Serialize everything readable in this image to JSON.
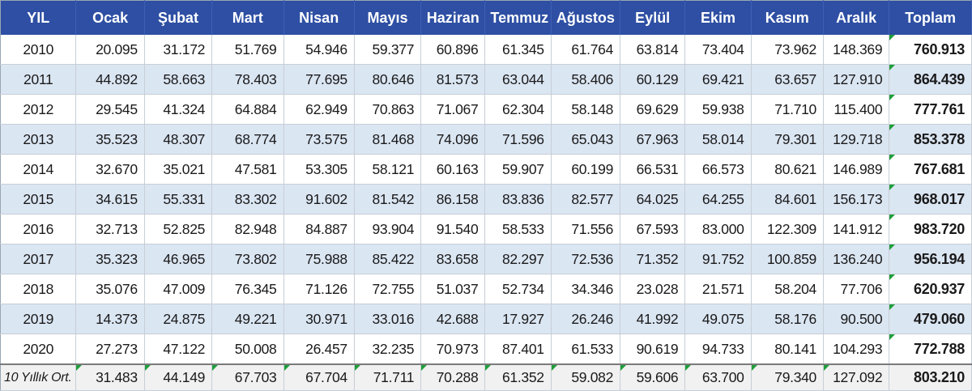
{
  "header": {
    "year": "YIL",
    "months": [
      "Ocak",
      "Şubat",
      "Mart",
      "Nisan",
      "Mayıs",
      "Haziran",
      "Temmuz",
      "Ağustos",
      "Eylül",
      "Ekim",
      "Kasım",
      "Aralık"
    ],
    "total": "Toplam"
  },
  "rows": [
    {
      "year": "2010",
      "values": [
        "20.095",
        "31.172",
        "51.769",
        "54.946",
        "59.377",
        "60.896",
        "61.345",
        "61.764",
        "63.814",
        "73.404",
        "73.962",
        "148.369"
      ],
      "total": "760.913"
    },
    {
      "year": "2011",
      "values": [
        "44.892",
        "58.663",
        "78.403",
        "77.695",
        "80.646",
        "81.573",
        "63.044",
        "58.406",
        "60.129",
        "69.421",
        "63.657",
        "127.910"
      ],
      "total": "864.439"
    },
    {
      "year": "2012",
      "values": [
        "29.545",
        "41.324",
        "64.884",
        "62.949",
        "70.863",
        "71.067",
        "62.304",
        "58.148",
        "69.629",
        "59.938",
        "71.710",
        "115.400"
      ],
      "total": "777.761"
    },
    {
      "year": "2013",
      "values": [
        "35.523",
        "48.307",
        "68.774",
        "73.575",
        "81.468",
        "74.096",
        "71.596",
        "65.043",
        "67.963",
        "58.014",
        "79.301",
        "129.718"
      ],
      "total": "853.378"
    },
    {
      "year": "2014",
      "values": [
        "32.670",
        "35.021",
        "47.581",
        "53.305",
        "58.121",
        "60.163",
        "59.907",
        "60.199",
        "66.531",
        "66.573",
        "80.621",
        "146.989"
      ],
      "total": "767.681"
    },
    {
      "year": "2015",
      "values": [
        "34.615",
        "55.331",
        "83.302",
        "91.602",
        "81.542",
        "86.158",
        "83.836",
        "82.577",
        "64.025",
        "64.255",
        "84.601",
        "156.173"
      ],
      "total": "968.017"
    },
    {
      "year": "2016",
      "values": [
        "32.713",
        "52.825",
        "82.948",
        "84.887",
        "93.904",
        "91.540",
        "58.533",
        "71.556",
        "67.593",
        "83.000",
        "122.309",
        "141.912"
      ],
      "total": "983.720"
    },
    {
      "year": "2017",
      "values": [
        "35.323",
        "46.965",
        "73.802",
        "75.988",
        "85.422",
        "83.658",
        "82.297",
        "72.536",
        "71.352",
        "91.752",
        "100.859",
        "136.240"
      ],
      "total": "956.194"
    },
    {
      "year": "2018",
      "values": [
        "35.076",
        "47.009",
        "76.345",
        "71.126",
        "72.755",
        "51.037",
        "52.734",
        "34.346",
        "23.028",
        "21.571",
        "58.204",
        "77.706"
      ],
      "total": "620.937"
    },
    {
      "year": "2019",
      "values": [
        "14.373",
        "24.875",
        "49.221",
        "30.971",
        "33.016",
        "42.688",
        "17.927",
        "26.246",
        "41.992",
        "49.075",
        "58.176",
        "90.500"
      ],
      "total": "479.060"
    },
    {
      "year": "2020",
      "values": [
        "27.273",
        "47.122",
        "50.008",
        "26.457",
        "32.235",
        "70.973",
        "87.401",
        "61.533",
        "90.619",
        "94.733",
        "80.141",
        "104.293"
      ],
      "total": "772.788"
    }
  ],
  "average": {
    "label": "10 Yıllık Ort.",
    "values": [
      "31.483",
      "44.149",
      "67.703",
      "67.704",
      "71.711",
      "70.288",
      "61.352",
      "59.082",
      "59.606",
      "63.700",
      "79.340",
      "127.092"
    ],
    "total": "803.210"
  },
  "colors": {
    "header_bg": "#2e4fa3",
    "band_bg": "#dbe6f3",
    "flag": "#1f9e3a"
  }
}
